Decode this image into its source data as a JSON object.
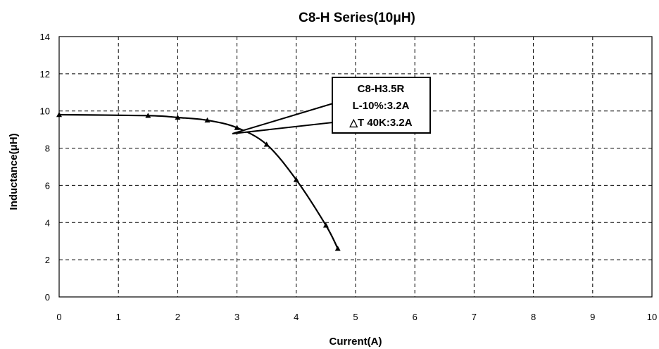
{
  "chart_data": {
    "type": "line",
    "title": "C8-H Series(10μH)",
    "xlabel": "Current(A)",
    "ylabel": "Inductance(μH)",
    "xlim": [
      0,
      10
    ],
    "ylim": [
      0,
      14
    ],
    "x_ticks": [
      "0",
      "1",
      "2",
      "3",
      "4",
      "5",
      "6",
      "7",
      "8",
      "9",
      "10"
    ],
    "y_ticks": [
      "0",
      "2",
      "4",
      "6",
      "8",
      "10",
      "12",
      "14"
    ],
    "grid": "dashed",
    "series": [
      {
        "marker": "triangle",
        "color": "#000000",
        "x": [
          0,
          1.5,
          2.0,
          2.5,
          3.0,
          3.5,
          4.0,
          4.5,
          4.7
        ],
        "y": [
          9.8,
          9.75,
          9.65,
          9.5,
          9.1,
          8.2,
          6.3,
          3.85,
          2.6
        ]
      }
    ],
    "annotation": {
      "lines": [
        "C8-H3.5R",
        "L-10%:3.2A",
        "△T 40K:3.2A"
      ],
      "points_to": {
        "x": 3.2,
        "y": 8.75
      }
    }
  }
}
